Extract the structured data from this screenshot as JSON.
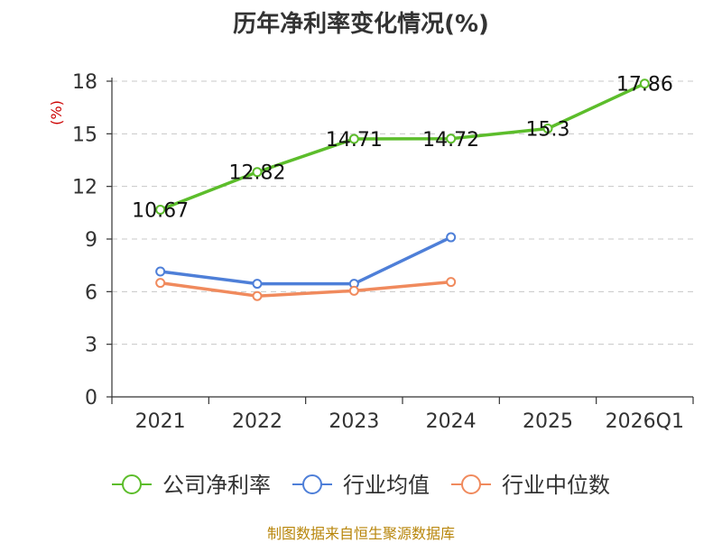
{
  "chart_data": {
    "type": "line",
    "title": "历年净利率变化情况(%)",
    "ylabel": "(%)",
    "categories": [
      "2021",
      "2022",
      "2023",
      "2024",
      "2025",
      "2026Q1"
    ],
    "ylim": [
      0,
      18
    ],
    "yticks": [
      0,
      3,
      6,
      9,
      12,
      15,
      18
    ],
    "grid": true,
    "legend_position": "bottom",
    "series": [
      {
        "name": "公司净利率",
        "color": "#5cbd2b",
        "values": [
          10.67,
          12.82,
          14.71,
          14.72,
          15.3,
          17.86
        ],
        "labels": [
          "10.67",
          "12.82",
          "14.71",
          "14.72",
          "15.3",
          "17.86"
        ]
      },
      {
        "name": "行业均值",
        "color": "#4e7fd8",
        "values": [
          7.15,
          6.45,
          6.45,
          9.1,
          null,
          null
        ]
      },
      {
        "name": "行业中位数",
        "color": "#f08a5d",
        "values": [
          6.5,
          5.75,
          6.05,
          6.55,
          null,
          null
        ]
      }
    ]
  },
  "source_text": "制图数据来自恒生聚源数据库"
}
